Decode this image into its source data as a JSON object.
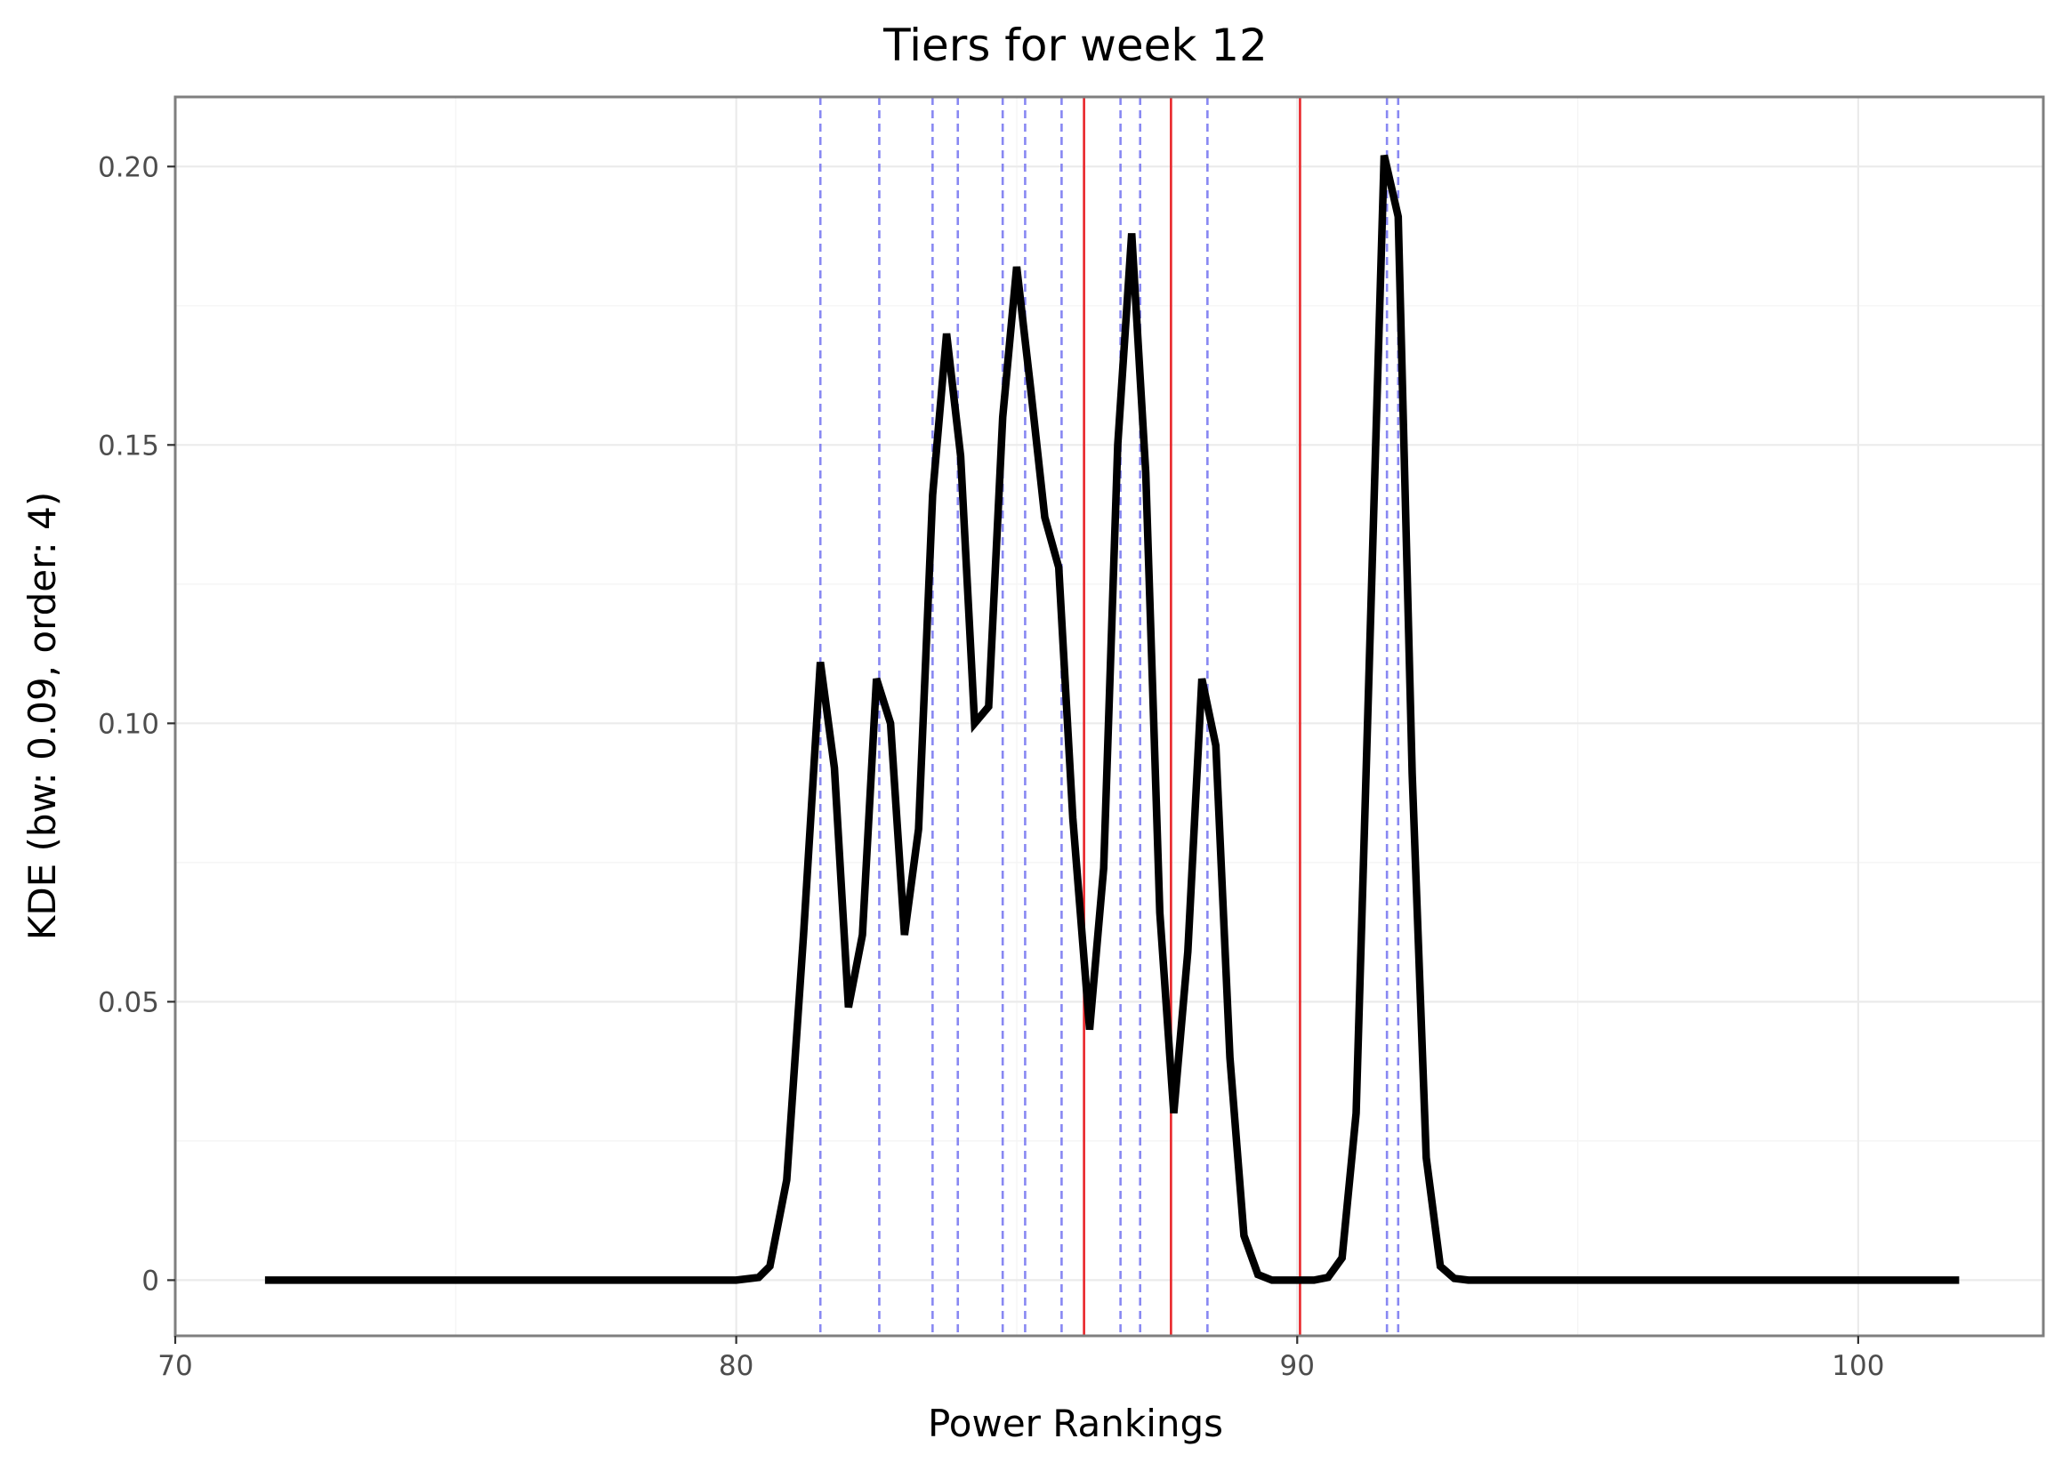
{
  "chart_data": {
    "type": "line",
    "title": "Tiers for week 12",
    "xlabel": "Power Rankings",
    "ylabel": "KDE (bw: 0.09, order: 4)",
    "xlim": [
      70,
      103.3
    ],
    "ylim": [
      -0.01,
      0.2125
    ],
    "x_ticks": [
      70,
      80,
      90,
      100
    ],
    "x_tick_labels": [
      "70",
      "80",
      "90",
      "100"
    ],
    "y_ticks": [
      0,
      0.05,
      0.1,
      0.15,
      0.2
    ],
    "y_tick_labels": [
      "0",
      "0.05",
      "0.10",
      "0.15",
      "0.20"
    ],
    "grid": true,
    "legend": "none",
    "colors": {
      "kde": "#000000",
      "tier_boundary": "#e8262a",
      "team_marker": "#6b6bf0"
    },
    "series": [
      {
        "x": [
          71.6,
          80.0,
          80.4,
          80.6,
          80.9,
          81.2,
          81.5,
          81.75,
          82.0,
          82.25,
          82.5,
          82.75,
          83.0,
          83.25,
          83.5,
          83.75,
          84.0,
          84.25,
          84.5,
          84.75,
          85.0,
          85.25,
          85.5,
          85.75,
          86.0,
          86.3,
          86.55,
          86.8,
          87.05,
          87.3,
          87.55,
          87.8,
          88.05,
          88.3,
          88.55,
          88.8,
          89.05,
          89.3,
          89.55,
          90.0,
          90.3,
          90.55,
          90.8,
          91.05,
          91.55,
          91.8,
          92.05,
          92.3,
          92.55,
          92.8,
          93.05,
          101.8
        ],
        "y": [
          0,
          0,
          0.0005,
          0.0025,
          0.018,
          0.062,
          0.111,
          0.092,
          0.049,
          0.062,
          0.108,
          0.1,
          0.062,
          0.081,
          0.141,
          0.17,
          0.148,
          0.1,
          0.103,
          0.155,
          0.182,
          0.16,
          0.137,
          0.128,
          0.083,
          0.045,
          0.074,
          0.15,
          0.188,
          0.145,
          0.066,
          0.03,
          0.059,
          0.108,
          0.096,
          0.04,
          0.008,
          0.001,
          0,
          0,
          0,
          0.0005,
          0.004,
          0.03,
          0.202,
          0.191,
          0.091,
          0.022,
          0.0025,
          0.0003,
          0,
          0
        ]
      }
    ],
    "team_markers_x": [
      81.5,
      82.55,
      83.5,
      83.95,
      84.75,
      85.15,
      85.8,
      86.85,
      87.2,
      88.4,
      91.6,
      91.8
    ],
    "tier_boundaries_x": [
      86.2,
      87.75,
      90.05
    ]
  }
}
